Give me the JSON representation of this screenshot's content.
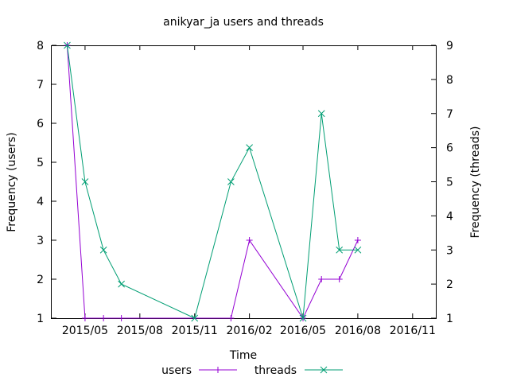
{
  "chart_data": {
    "type": "line",
    "title": "anikyar_ja users and threads",
    "xlabel": "Time",
    "ylabel_left": "Frequency (users)",
    "ylabel_right": "Frequency (threads)",
    "x_ticks": [
      "2015/05",
      "2015/08",
      "2015/11",
      "2016/02",
      "2016/05",
      "2016/08",
      "2016/11"
    ],
    "x_tick_dates": [
      "2015-05-01",
      "2015-08-01",
      "2015-11-01",
      "2016-02-01",
      "2016-05-01",
      "2016-08-01",
      "2016-11-01"
    ],
    "xlim": [
      "2015-03-06",
      "2016-12-10"
    ],
    "y_left_ticks": [
      "1",
      "2",
      "3",
      "4",
      "5",
      "6",
      "7",
      "8"
    ],
    "ylim_left": [
      1,
      8
    ],
    "y_right_ticks": [
      "1",
      "2",
      "3",
      "4",
      "5",
      "6",
      "7",
      "8",
      "9"
    ],
    "ylim_right": [
      1,
      9
    ],
    "legend_position": "bottom",
    "grid": false,
    "series": [
      {
        "name": "users",
        "axis": "left",
        "color": "#9400d3",
        "marker": "plus",
        "x": [
          "2015-04-01",
          "2015-05-01",
          "2015-06-01",
          "2015-07-01",
          "2016-01-01",
          "2016-02-01",
          "2016-05-01",
          "2016-06-01",
          "2016-07-01",
          "2016-08-01"
        ],
        "y": [
          8,
          1,
          1,
          1,
          1,
          3,
          1,
          2,
          2,
          3
        ]
      },
      {
        "name": "threads",
        "axis": "right",
        "color": "#009e73",
        "marker": "cross",
        "x": [
          "2015-04-01",
          "2015-05-01",
          "2015-06-01",
          "2015-07-01",
          "2015-11-01",
          "2016-01-01",
          "2016-02-01",
          "2016-05-01",
          "2016-06-01",
          "2016-07-01",
          "2016-08-01"
        ],
        "y": [
          9,
          5,
          3,
          2,
          1,
          5,
          6,
          1,
          7,
          3,
          3
        ]
      }
    ]
  }
}
